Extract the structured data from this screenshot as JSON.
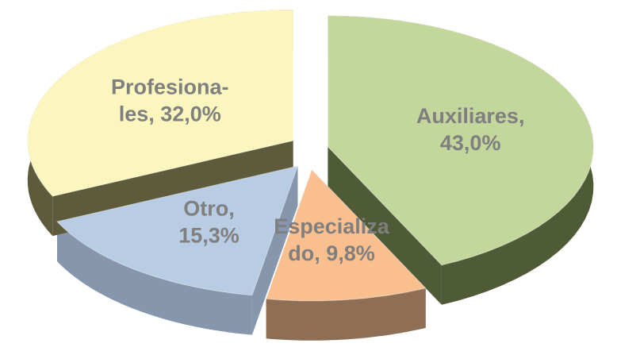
{
  "chart_data": {
    "type": "pie",
    "values": [
      43.0,
      9.8,
      15.3,
      32.0
    ],
    "value_labels": [
      [
        "Auxiliares,",
        "43,0%"
      ],
      [
        "Especializa",
        "do, 9,8%"
      ],
      [
        "Otro,",
        "15,3%"
      ],
      [
        "Profesiona-",
        "les, 32,0%"
      ]
    ],
    "colors": [
      "#c3d69b",
      "#f9bf8f",
      "#b8cce4",
      "#fbf6bd"
    ],
    "side_colors": [
      "#4f5a37",
      "#8e6f55",
      "#8596ad",
      "#5e5a3c"
    ]
  }
}
